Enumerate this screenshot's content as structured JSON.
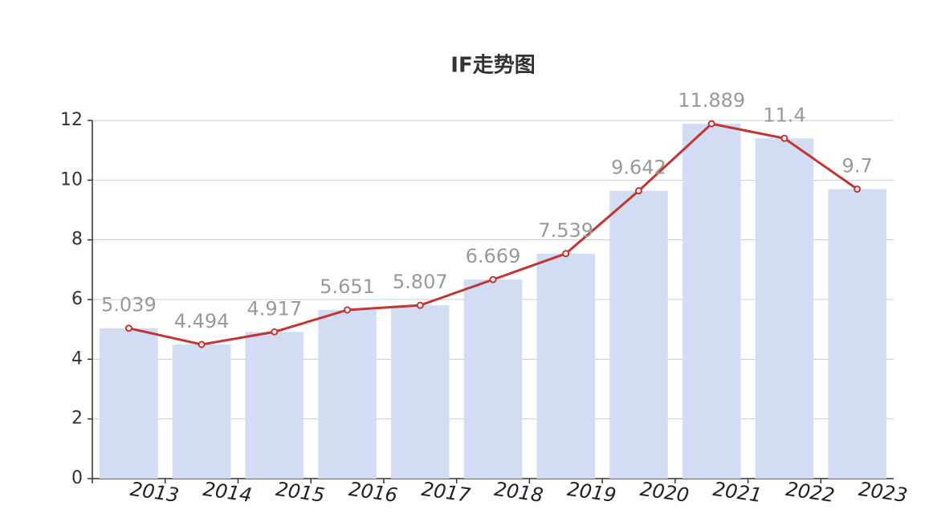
{
  "chart_data": {
    "type": "bar",
    "title": "IF走势图",
    "categories": [
      "2013",
      "2014",
      "2015",
      "2016",
      "2017",
      "2018",
      "2019",
      "2020",
      "2021",
      "2022",
      "2023"
    ],
    "series": [
      {
        "type": "bar",
        "color": "#d2dcf2",
        "values": [
          5.039,
          4.494,
          4.917,
          5.651,
          5.807,
          6.669,
          7.539,
          9.642,
          11.889,
          11.4,
          9.7
        ]
      },
      {
        "type": "line",
        "color": "#c23531",
        "values": [
          5.039,
          4.494,
          4.917,
          5.651,
          5.807,
          6.669,
          7.539,
          9.642,
          11.889,
          11.4,
          9.7
        ]
      }
    ],
    "ylim": [
      0,
      12
    ],
    "yticks": [
      0,
      2,
      4,
      6,
      8,
      10,
      12
    ],
    "grid": true
  }
}
